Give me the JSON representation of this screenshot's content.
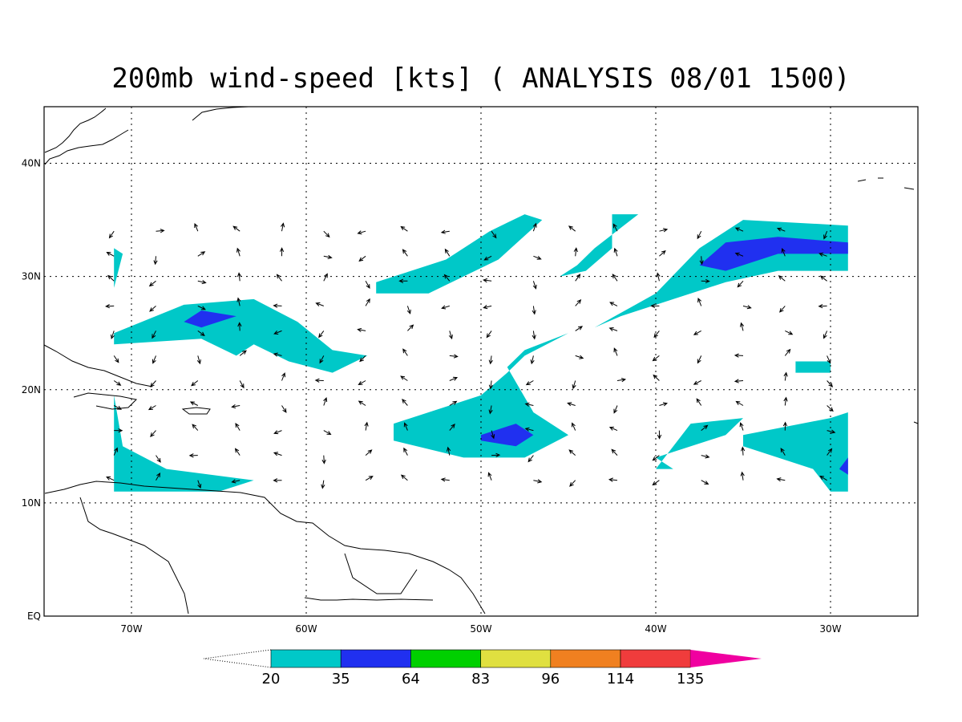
{
  "title": "200mb wind-speed [kts] ( ANALYSIS 08/01 1500)",
  "chart_data": {
    "type": "heatmap",
    "variable": "wind-speed",
    "units": "kts",
    "level": "200mb",
    "lon_range": [
      -75,
      -25
    ],
    "lat_range": [
      0,
      45
    ],
    "grid": true,
    "grid_lon": [
      -70,
      -60,
      -50,
      -40,
      -30
    ],
    "grid_lat": [
      10,
      20,
      30,
      40
    ],
    "lon_ticks": [
      "70W",
      "60W",
      "50W",
      "40W",
      "30W"
    ],
    "lat_ticks": [
      "EQ",
      "10N",
      "20N",
      "30N",
      "40N"
    ],
    "contour_levels": [
      "20",
      "35",
      "64",
      "83",
      "96",
      "114",
      "135"
    ],
    "level_colors": [
      "#00c8c8",
      "#2030f0",
      "#00d000",
      "#e0e040",
      "#f08020",
      "#f03c3c",
      "#f000a0"
    ],
    "colorbar_placement": "bottom",
    "regions": [
      {
        "band": "20-35",
        "points": [
          [
            -42.5,
            35.5
          ],
          [
            -41,
            35.5
          ],
          [
            -43.5,
            32.5
          ],
          [
            -44.5,
            31
          ],
          [
            -45.5,
            30
          ],
          [
            -44,
            30.5
          ],
          [
            -42.5,
            32.5
          ]
        ]
      },
      {
        "band": "20-35",
        "points": [
          [
            -52,
            31.5
          ],
          [
            -49.5,
            34
          ],
          [
            -47.5,
            35.5
          ],
          [
            -46.5,
            35
          ],
          [
            -49,
            31.5
          ],
          [
            -53,
            28.5
          ],
          [
            -56,
            28.5
          ],
          [
            -56,
            29.5
          ],
          [
            -54,
            30.5
          ]
        ]
      },
      {
        "band": "20-35",
        "points": [
          [
            -43.5,
            25.5
          ],
          [
            -40,
            28.5
          ],
          [
            -37.5,
            32.5
          ],
          [
            -35,
            35
          ],
          [
            -29,
            34.5
          ],
          [
            -29,
            30.5
          ],
          [
            -33,
            30.5
          ],
          [
            -36,
            29.5
          ],
          [
            -39,
            28
          ],
          [
            -42,
            26.5
          ]
        ]
      },
      {
        "band": "20-35",
        "points": [
          [
            -71,
            25
          ],
          [
            -67,
            27.5
          ],
          [
            -63,
            28
          ],
          [
            -60.5,
            26
          ],
          [
            -58.5,
            23.5
          ],
          [
            -56.5,
            23
          ],
          [
            -58.5,
            21.5
          ],
          [
            -61,
            22.5
          ],
          [
            -63,
            24
          ],
          [
            -64,
            23
          ],
          [
            -66,
            24.5
          ],
          [
            -71,
            24
          ]
        ]
      },
      {
        "band": "20-35",
        "points": [
          [
            -71,
            29
          ],
          [
            -70.5,
            32
          ],
          [
            -71,
            32.5
          ]
        ]
      },
      {
        "band": "20-35",
        "points": [
          [
            -71,
            19.5
          ],
          [
            -70.5,
            15
          ],
          [
            -68,
            13
          ],
          [
            -63,
            12
          ],
          [
            -65,
            11
          ],
          [
            -71,
            11
          ]
        ]
      },
      {
        "band": "20-35",
        "points": [
          [
            -55,
            17
          ],
          [
            -50,
            19.5
          ],
          [
            -48.5,
            21.5
          ],
          [
            -47.5,
            23
          ],
          [
            -45,
            25
          ],
          [
            -47.5,
            23.5
          ],
          [
            -48.5,
            22
          ],
          [
            -47,
            18
          ],
          [
            -45,
            16
          ],
          [
            -47.5,
            14
          ],
          [
            -51,
            14
          ],
          [
            -55,
            15.5
          ]
        ]
      },
      {
        "band": "20-35",
        "points": [
          [
            -40,
            13
          ],
          [
            -38,
            17
          ],
          [
            -35,
            17.5
          ],
          [
            -36,
            16
          ],
          [
            -40,
            14
          ],
          [
            -39,
            13
          ]
        ]
      },
      {
        "band": "20-35",
        "points": [
          [
            -32,
            22.5
          ],
          [
            -30,
            22.5
          ],
          [
            -30,
            21.5
          ],
          [
            -32,
            21.5
          ]
        ]
      },
      {
        "band": "20-35",
        "points": [
          [
            -35,
            16
          ],
          [
            -30,
            17.5
          ],
          [
            -29,
            18
          ],
          [
            -29,
            11
          ],
          [
            -30,
            11
          ],
          [
            -31,
            13
          ],
          [
            -35,
            15
          ]
        ]
      },
      {
        "band": "35-64",
        "points": [
          [
            -67,
            26
          ],
          [
            -66,
            27
          ],
          [
            -64,
            26.5
          ],
          [
            -66,
            25.5
          ]
        ]
      },
      {
        "band": "35-64",
        "points": [
          [
            -50,
            16
          ],
          [
            -48,
            17
          ],
          [
            -47,
            16
          ],
          [
            -48,
            15
          ],
          [
            -50,
            15.5
          ]
        ]
      },
      {
        "band": "35-64",
        "points": [
          [
            -37.5,
            31
          ],
          [
            -36,
            33
          ],
          [
            -33,
            33.5
          ],
          [
            -29,
            33
          ],
          [
            -29,
            32
          ],
          [
            -33,
            32
          ],
          [
            -36,
            30.5
          ]
        ]
      },
      {
        "band": "35-64",
        "points": [
          [
            -29,
            14
          ],
          [
            -29,
            12.5
          ],
          [
            -29.5,
            13
          ]
        ]
      }
    ]
  }
}
